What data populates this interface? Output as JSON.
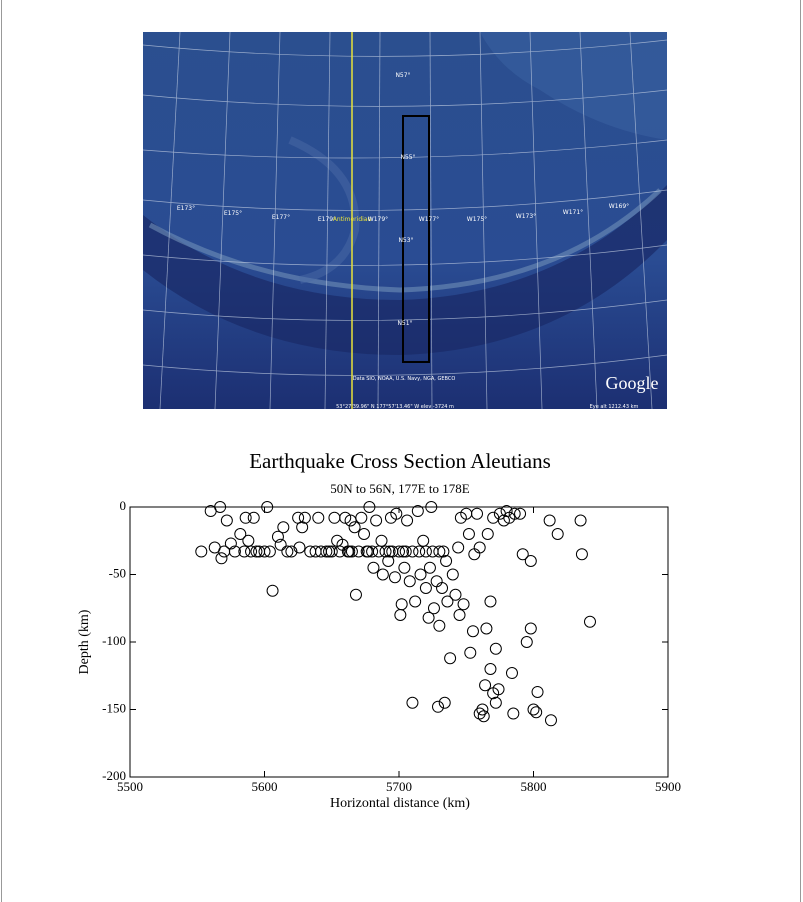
{
  "map": {
    "latitude_labels": [
      "N57°",
      "N55°",
      "N53°",
      "N51°"
    ],
    "longitude_labels": [
      "E173°",
      "E175°",
      "E177°",
      "E179°",
      "Antimeridian",
      "W179°",
      "W177°",
      "W175°",
      "W173°",
      "W171°",
      "W169°"
    ],
    "credit": "Data SIO, NOAA, U.S. Navy, NGA, GEBCO",
    "logo": "Google",
    "status": "53°27'39.96\" N 177°57'13.46\" W elev -3724 m",
    "eye_alt": "Eye alt 1212.43 km"
  },
  "chart_data": {
    "type": "scatter",
    "title": "Earthquake Cross Section Aleutians",
    "subtitle": "50N to 56N, 177E to 178E",
    "x_label": "Horizontal distance (km)",
    "y_label": "Depth (km)",
    "xlim": [
      5500,
      5900
    ],
    "xticks": [
      5500,
      5600,
      5700,
      5800,
      5900
    ],
    "ylim": [
      -200,
      0
    ],
    "yticks": [
      0,
      -50,
      -100,
      -150,
      -200
    ],
    "marker_color": "#000000",
    "x": [
      5553,
      5560,
      5563,
      5567,
      5568,
      5570,
      5572,
      5575,
      5578,
      5582,
      5585,
      5586,
      5588,
      5590,
      5592,
      5594,
      5596,
      5600,
      5602,
      5604,
      5606,
      5610,
      5612,
      5614,
      5617,
      5620,
      5625,
      5626,
      5628,
      5630,
      5634,
      5638,
      5640,
      5642,
      5646,
      5650,
      5652,
      5654,
      5656,
      5658,
      5660,
      5662,
      5664,
      5665,
      5667,
      5668,
      5670,
      5672,
      5674,
      5676,
      5678,
      5680,
      5681,
      5683,
      5685,
      5687,
      5688,
      5690,
      5692,
      5694,
      5695,
      5697,
      5698,
      5700,
      5701,
      5702,
      5704,
      5705,
      5706,
      5708,
      5710,
      5710,
      5712,
      5714,
      5715,
      5716,
      5718,
      5720,
      5720,
      5722,
      5723,
      5724,
      5725,
      5726,
      5728,
      5729,
      5730,
      5730,
      5732,
      5734,
      5735,
      5736,
      5738,
      5740,
      5742,
      5744,
      5745,
      5746,
      5748,
      5750,
      5752,
      5753,
      5755,
      5756,
      5758,
      5760,
      5760,
      5762,
      5763,
      5764,
      5765,
      5766,
      5768,
      5768,
      5770,
      5770,
      5772,
      5772,
      5774,
      5775,
      5778,
      5780,
      5782,
      5784,
      5785,
      5786,
      5790,
      5792,
      5795,
      5798,
      5798,
      5800,
      5803,
      5802,
      5812,
      5813,
      5818,
      5835,
      5836,
      5842,
      5733,
      5703,
      5693,
      5677,
      5663,
      5648
    ],
    "values": [
      -33,
      -3,
      -30,
      0,
      -38,
      -33,
      -10,
      -27,
      -33,
      -20,
      -33,
      -8,
      -25,
      -33,
      -8,
      -33,
      -33,
      -33,
      0,
      -33,
      -62,
      -22,
      -28,
      -15,
      -33,
      -33,
      -8,
      -30,
      -15,
      -8,
      -33,
      -33,
      -8,
      -33,
      -33,
      -33,
      -8,
      -25,
      -33,
      -28,
      -8,
      -33,
      -10,
      -33,
      -15,
      -65,
      -33,
      -8,
      -20,
      -33,
      0,
      -33,
      -45,
      -10,
      -33,
      -25,
      -50,
      -33,
      -40,
      -8,
      -33,
      -52,
      -5,
      -33,
      -80,
      -72,
      -45,
      -33,
      -10,
      -55,
      -145,
      -33,
      -70,
      -3,
      -33,
      -50,
      -25,
      -33,
      -60,
      -82,
      -45,
      0,
      -33,
      -75,
      -55,
      -148,
      -33,
      -88,
      -60,
      -145,
      -40,
      -70,
      -112,
      -50,
      -65,
      -30,
      -80,
      -8,
      -72,
      -5,
      -20,
      -108,
      -92,
      -35,
      -5,
      -153,
      -30,
      -150,
      -155,
      -132,
      -90,
      -20,
      -120,
      -70,
      -138,
      -8,
      -145,
      -105,
      -135,
      -5,
      -10,
      -3,
      -8,
      -123,
      -153,
      -5,
      -5,
      -35,
      -100,
      -40,
      -90,
      -150,
      -137,
      -152,
      -10,
      -158,
      -20,
      -10,
      -35,
      -85,
      -33,
      -33,
      -33,
      -33,
      -33,
      -33
    ]
  }
}
